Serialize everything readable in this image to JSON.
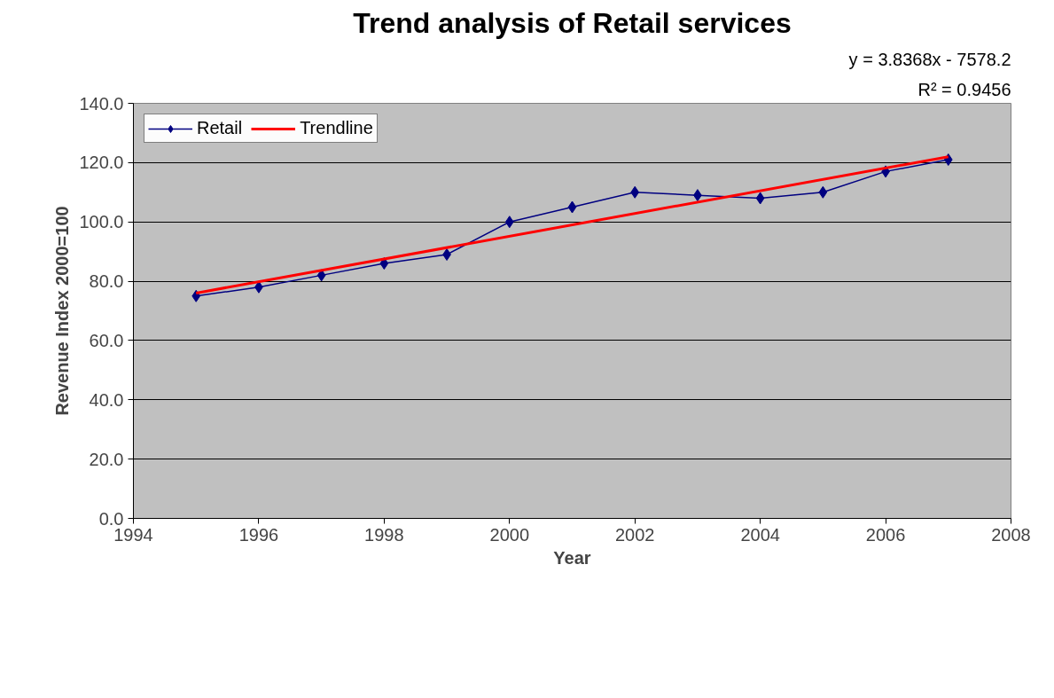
{
  "chart_data": {
    "type": "line",
    "title": "Trend analysis of Retail services",
    "xlabel": "Year",
    "ylabel": "Revenue Index 2000=100",
    "x": [
      1995,
      1996,
      1997,
      1998,
      1999,
      2000,
      2001,
      2002,
      2003,
      2004,
      2005,
      2006,
      2007
    ],
    "series": [
      {
        "name": "Retail",
        "color": "#000080",
        "marker": "diamond",
        "values": [
          75,
          78,
          82,
          86,
          89,
          100,
          105,
          110,
          109,
          108,
          110,
          117,
          121
        ]
      },
      {
        "name": "Trendline",
        "color": "#ff0000",
        "marker": "none",
        "x": [
          1995,
          2007
        ],
        "values": [
          76,
          122
        ]
      }
    ],
    "annotations": [
      "y = 3.8368x - 7578.2",
      "R² = 0.9456"
    ],
    "xlim": [
      1994,
      2008
    ],
    "xticks": [
      1994,
      1996,
      1998,
      2000,
      2002,
      2004,
      2006,
      2008
    ],
    "ylim": [
      0,
      140
    ],
    "yticks": [
      {
        "value": 0,
        "label": "0.0"
      },
      {
        "value": 20,
        "label": "20.0"
      },
      {
        "value": 40,
        "label": "40.0"
      },
      {
        "value": 60,
        "label": "60.0"
      },
      {
        "value": 80,
        "label": "80.0"
      },
      {
        "value": 100,
        "label": "100.0"
      },
      {
        "value": 120,
        "label": "120.0"
      },
      {
        "value": 140,
        "label": "140.0"
      }
    ],
    "grid": "y",
    "legend": "top left"
  }
}
